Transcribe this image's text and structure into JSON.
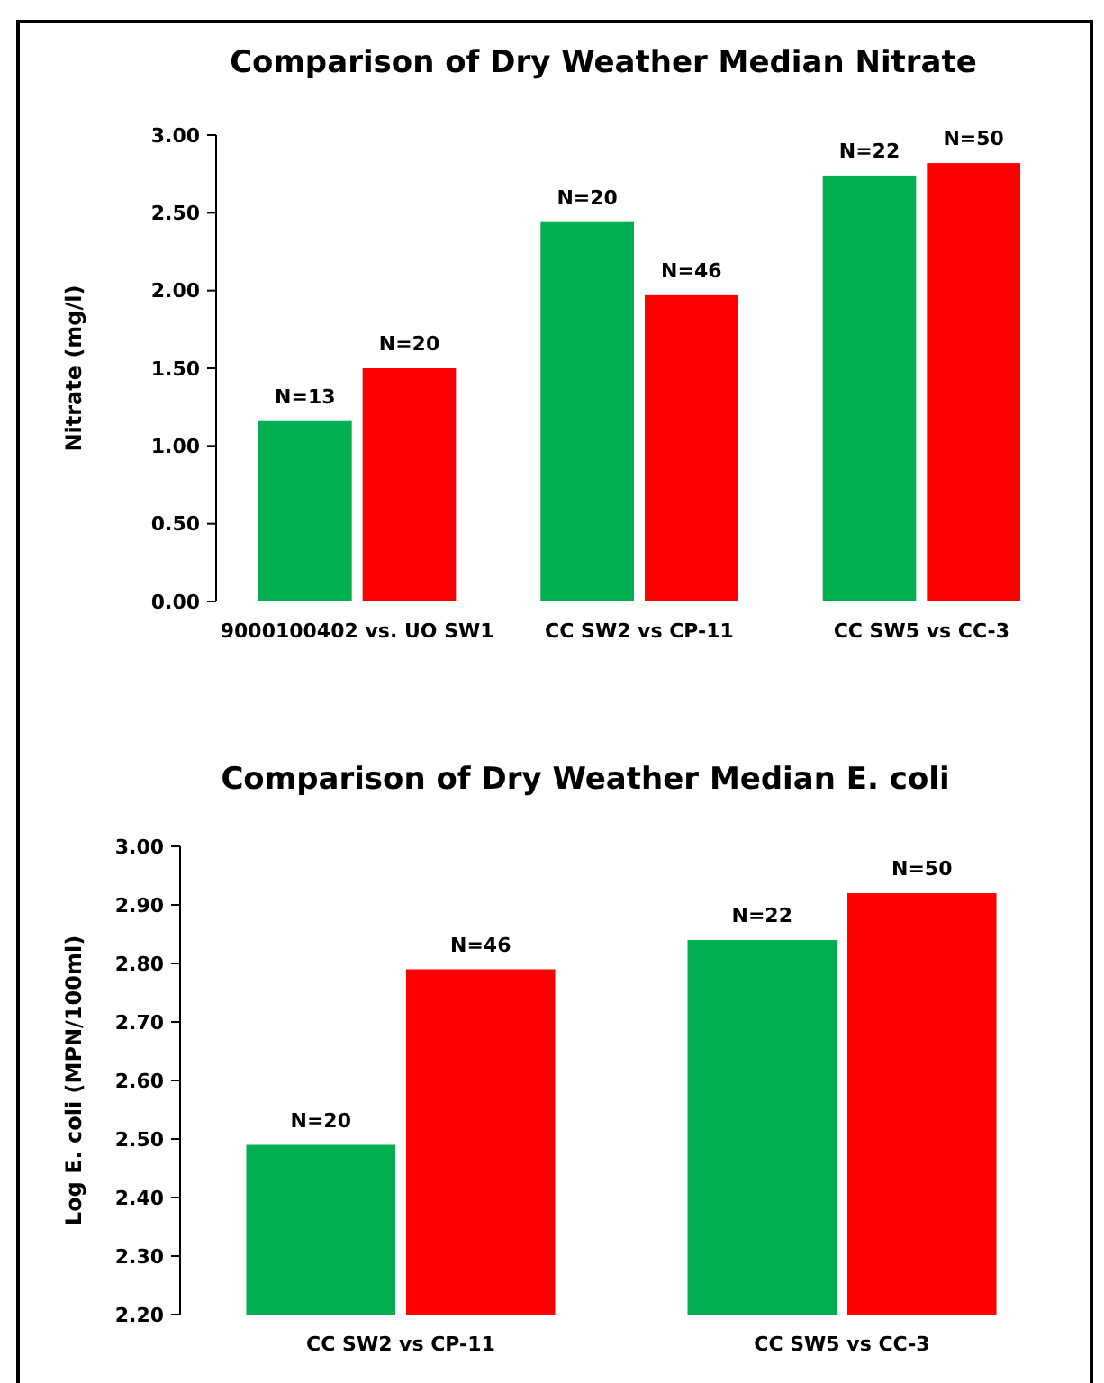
{
  "chart_data": [
    {
      "type": "bar",
      "title": "Comparison of Dry Weather Median Nitrate",
      "ylabel": "Nitrate  (mg/l)",
      "categories": [
        "9000100402 vs. UO SW1",
        "CC SW2 vs CP-11",
        "CC SW5 vs CC-3"
      ],
      "series": [
        {
          "color": "#00b050",
          "values": [
            1.16,
            2.44,
            2.74
          ]
        },
        {
          "color": "#ff0000",
          "values": [
            1.5,
            1.97,
            2.82
          ]
        }
      ],
      "annotations": [
        {
          "text": "N=13",
          "x": "9000100402 vs. UO SW1",
          "y": 1.16
        },
        {
          "text": "N=20",
          "x": "CC SW2 vs CP-11",
          "y": 2.44
        },
        {
          "text": "N=22",
          "x": "CC SW5 vs CC-3",
          "y": 2.74
        },
        {
          "text": "N=20",
          "x": "9000100402 vs. UO SW1",
          "y": 1.5
        },
        {
          "text": "N=46",
          "x": "CC SW2 vs CP-11",
          "y": 1.97
        },
        {
          "text": "N=50",
          "x": "CC SW5 vs CC-3",
          "y": 2.82
        }
      ],
      "ylim": [
        0,
        3
      ],
      "yticks": [
        {
          "value": 0,
          "label": "0.00"
        },
        {
          "value": 0.5,
          "label": "0.50"
        },
        {
          "value": 1,
          "label": "1.00"
        },
        {
          "value": 1.5,
          "label": "1.50"
        },
        {
          "value": 2,
          "label": "2.00"
        },
        {
          "value": 2.5,
          "label": "2.50"
        },
        {
          "value": 3,
          "label": "3.00"
        }
      ],
      "grid": false
    },
    {
      "type": "bar",
      "title": "Comparison of Dry Weather Median E. coli",
      "ylabel": "Log E. coli (MPN/100ml)",
      "categories": [
        "CC SW2 vs CP-11",
        "CC SW5 vs CC-3"
      ],
      "series": [
        {
          "color": "#00b050",
          "values": [
            2.49,
            2.84
          ]
        },
        {
          "color": "#ff0000",
          "values": [
            2.79,
            2.92
          ]
        }
      ],
      "annotations": [
        {
          "text": "N=20",
          "x": "CC SW2 vs CP-11",
          "y": 2.49
        },
        {
          "text": "N=22",
          "x": "CC SW5 vs CC-3",
          "y": 2.84
        },
        {
          "text": "N=46",
          "x": "CC SW2 vs CP-11",
          "y": 2.79
        },
        {
          "text": "N=50",
          "x": "CC SW5 vs CC-3",
          "y": 2.92
        }
      ],
      "ylim": [
        2.2,
        3
      ],
      "yticks": [
        {
          "value": 2.2,
          "label": "2.20"
        },
        {
          "value": 2.3,
          "label": "2.30"
        },
        {
          "value": 2.4,
          "label": "2.40"
        },
        {
          "value": 2.5,
          "label": "2.50"
        },
        {
          "value": 2.6,
          "label": "2.60"
        },
        {
          "value": 2.7,
          "label": "2.70"
        },
        {
          "value": 2.8,
          "label": "2.80"
        },
        {
          "value": 2.9,
          "label": "2.90"
        },
        {
          "value": 3,
          "label": "3.00"
        }
      ],
      "grid": false
    }
  ]
}
